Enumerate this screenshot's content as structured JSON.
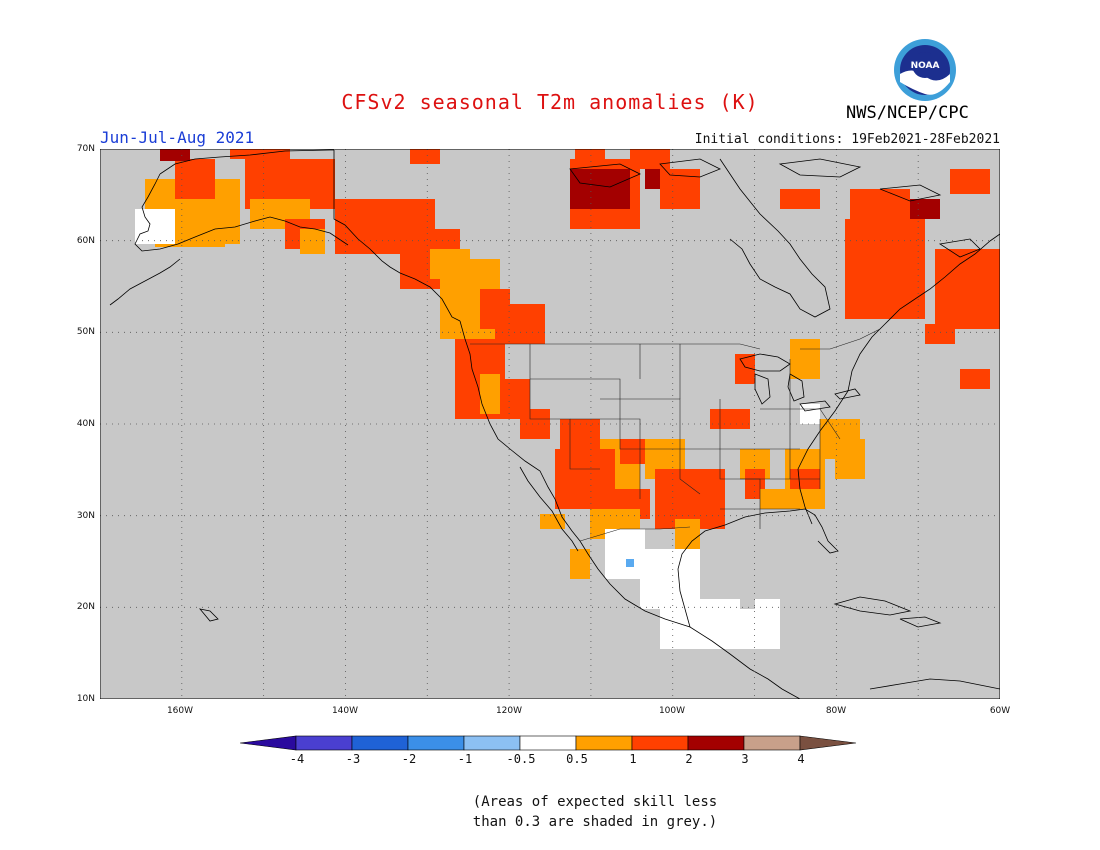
{
  "header": {
    "title": "CFSv2 seasonal T2m anomalies (K)",
    "period": "Jun-Jul-Aug 2021",
    "initial_conditions": "Initial conditions: 19Feb2021-28Feb2021",
    "agency": "NWS/NCEP/CPC",
    "logo_text": "NOAA"
  },
  "map": {
    "lat_labels": [
      "70N",
      "60N",
      "50N",
      "40N",
      "30N",
      "20N",
      "10N"
    ],
    "lon_labels": [
      "160W",
      "140W",
      "120W",
      "100W",
      "80W",
      "60W"
    ],
    "low_skill_color": "#c8c8c8",
    "land_color_neutral": "#ffffff"
  },
  "colorbar": {
    "ticks": [
      "-4",
      "-3",
      "-2",
      "-1",
      "-0.5",
      "0.5",
      "1",
      "2",
      "3",
      "4"
    ],
    "colors": [
      "#2a0a9e",
      "#4a3fd0",
      "#1f62d6",
      "#3b8fe8",
      "#8cc0f3",
      "#ffffff",
      "#ffa000",
      "#ff4000",
      "#a30000",
      "#c8a08a",
      "#7a5040"
    ]
  },
  "footnote": {
    "line1": "(Areas of expected skill less",
    "line2": "than 0.3 are shaded in grey.)"
  }
}
